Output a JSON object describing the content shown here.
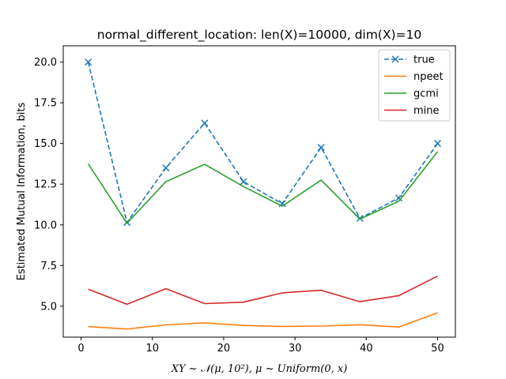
{
  "chart_data": {
    "type": "line",
    "title": "normal_different_location: len(X)=10000, dim(X)=10",
    "xlabel": "XY ~ 𝒩(μ, 10²), μ ~ Uniform(0, x)",
    "ylabel": "Estimated Mutual Information, bits",
    "xlim": [
      -2.5,
      52.5
    ],
    "ylim": [
      3.1,
      21.0
    ],
    "xticks": [
      0,
      10,
      20,
      30,
      40,
      50
    ],
    "xtick_labels": [
      "0",
      "10",
      "20",
      "30",
      "40",
      "50"
    ],
    "yticks": [
      5.0,
      7.5,
      10.0,
      12.5,
      15.0,
      17.5,
      20.0
    ],
    "ytick_labels": [
      "5.0",
      "7.5",
      "10.0",
      "12.5",
      "15.0",
      "17.5",
      "20.0"
    ],
    "grid": false,
    "legend_position": "top-right",
    "x": [
      1.0,
      6.44,
      11.89,
      17.33,
      22.78,
      28.22,
      33.67,
      39.11,
      44.56,
      50.0
    ],
    "series": [
      {
        "name": "true",
        "color": "#1f77b4",
        "dashed": true,
        "marker": "x",
        "values": [
          20.0,
          10.15,
          13.5,
          16.25,
          12.65,
          11.3,
          14.75,
          10.4,
          11.65,
          15.0
        ]
      },
      {
        "name": "npeet",
        "color": "#ff7f0e",
        "dashed": false,
        "marker": null,
        "values": [
          3.75,
          3.6,
          3.85,
          3.98,
          3.82,
          3.76,
          3.78,
          3.86,
          3.72,
          4.6
        ]
      },
      {
        "name": "gcmi",
        "color": "#2ca02c",
        "dashed": false,
        "marker": null,
        "values": [
          13.75,
          10.1,
          12.65,
          13.72,
          12.35,
          11.15,
          12.75,
          10.35,
          11.45,
          14.5
        ]
      },
      {
        "name": "mine",
        "color": "#d62728",
        "dashed": false,
        "marker": null,
        "values": [
          6.05,
          5.12,
          6.08,
          5.16,
          5.25,
          5.82,
          5.98,
          5.28,
          5.65,
          6.85
        ]
      }
    ]
  }
}
